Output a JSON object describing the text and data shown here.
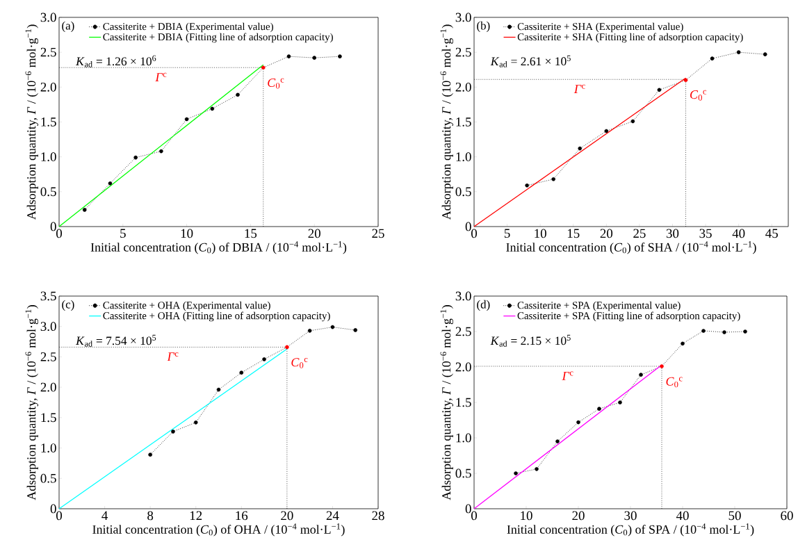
{
  "chart_data": [
    {
      "type": "line",
      "xlabel": "Initial concentration (*C*$_{0}$) of DBIA / (10$^{−4}$ mol·L$^{−1}$)",
      "ylabel": "Adsorption quantity, *Γ* / (10$^{−6}$ mol·g$^{−1}$)",
      "annotations": [
        "(a)",
        "*K*$_{ad}$ = 1.26 × 10$^{6}$"
      ],
      "xlim": [
        0,
        25
      ],
      "xticks": [
        0,
        5,
        10,
        15,
        20,
        25
      ],
      "ylim": [
        0,
        3
      ],
      "yticks": [
        0,
        0.5,
        {
          "value": 1,
          "label": "1.0"
        },
        1.5,
        {
          "value": 2,
          "label": "2.0"
        },
        2.5,
        {
          "value": 3,
          "label": "3.0"
        }
      ],
      "legend": "top left",
      "grid": false,
      "series": [
        {
          "name": "Cassiterite + DBIA (Experimental value)",
          "marker": "circle",
          "line_style": "dotted",
          "color": "#000000",
          "colors": [
            "#000000",
            "#000000",
            "#000000",
            "#000000",
            "#000000",
            "#000000",
            "#000000",
            "#ff0000",
            "#000000",
            "#000000",
            "#000000"
          ],
          "x": [
            2,
            4,
            6,
            8,
            10,
            12,
            14,
            16,
            18,
            20,
            22
          ],
          "values": [
            0.24,
            0.62,
            0.99,
            1.08,
            1.54,
            1.69,
            1.89,
            2.28,
            2.44,
            2.42,
            2.44
          ]
        },
        {
          "name": "Cassiterite + DBIA (Fitting line of adsorption capacity)",
          "marker": "none",
          "line_style": "solid",
          "color": "#00ff00",
          "x": [
            0,
            16
          ],
          "values": [
            0,
            2.32
          ]
        }
      ],
      "ref_lines": [
        {
          "axis": "y",
          "value": 2.28,
          "label": "*Γ*$^{c}$",
          "line_style": "dotted"
        },
        {
          "axis": "x",
          "value": 16,
          "label": "*C*$_{0}$$^{c}$",
          "line_style": "dotted"
        }
      ]
    },
    {
      "type": "line",
      "xlabel": "Initial concentration (*C*$_{0}$) of SHA / (10$^{−4}$ mol·L$^{−1}$)",
      "ylabel": "Adsorption quantity, *Γ* / (10$^{−6}$ mol·g$^{−1}$)",
      "annotations": [
        "(b)",
        "*K*$_{ad}$ = 2.61 × 10$^{5}$"
      ],
      "xlim": [
        0,
        47.5
      ],
      "xticks": [
        0,
        5,
        10,
        15,
        20,
        25,
        30,
        35,
        40,
        45
      ],
      "ylim": [
        0,
        3
      ],
      "yticks": [
        0,
        0.5,
        {
          "value": 1,
          "label": "1.0"
        },
        1.5,
        {
          "value": 2,
          "label": "2.0"
        },
        2.5,
        {
          "value": 3,
          "label": "3.0"
        }
      ],
      "legend": "top left",
      "grid": false,
      "series": [
        {
          "name": "Cassiterite + SHA (Experimental value)",
          "marker": "circle",
          "line_style": "dotted",
          "color": "#000000",
          "colors": [
            "#000000",
            "#000000",
            "#000000",
            "#000000",
            "#000000",
            "#000000",
            "#ff0000",
            "#000000",
            "#000000",
            "#000000"
          ],
          "x": [
            8,
            12,
            16,
            20,
            24,
            28,
            32,
            36,
            40,
            44
          ],
          "values": [
            0.59,
            0.68,
            1.12,
            1.37,
            1.51,
            1.96,
            2.1,
            2.41,
            2.5,
            2.47
          ]
        },
        {
          "name": "Cassiterite + SHA (Fitting line of adsorption capacity)",
          "marker": "none",
          "line_style": "solid",
          "color": "#ff0000",
          "x": [
            0,
            32
          ],
          "values": [
            0,
            2.13
          ]
        }
      ],
      "ref_lines": [
        {
          "axis": "y",
          "value": 2.11,
          "label": "*Γ*$^{c}$",
          "line_style": "dotted"
        },
        {
          "axis": "x",
          "value": 32,
          "label": "*C*$_{0}$$^{c}$",
          "line_style": "dotted"
        }
      ]
    },
    {
      "type": "line",
      "xlabel": "Initial concentration (*C*$_{0}$) of OHA / (10$^{−4}$ mol·L$^{−1}$)",
      "ylabel": "Adsorption quantity, *Γ* / (10$^{−6}$ mol·g$^{−1}$)",
      "annotations": [
        "(c)",
        "*K*$_{ad}$ = 7.54 × 10$^{5}$"
      ],
      "xlim": [
        0,
        28
      ],
      "xticks": [
        0,
        4,
        8,
        12,
        16,
        20,
        24,
        28
      ],
      "ylim": [
        0,
        3.5
      ],
      "yticks": [
        0,
        0.5,
        {
          "value": 1,
          "label": "1.0"
        },
        1.5,
        {
          "value": 2,
          "label": "2.0"
        },
        2.5,
        {
          "value": 3,
          "label": "3.0"
        },
        3.5
      ],
      "legend": "top left",
      "grid": false,
      "series": [
        {
          "name": "Cassiterite + OHA (Experimental value)",
          "marker": "circle",
          "line_style": "dotted",
          "color": "#000000",
          "colors": [
            "#000000",
            "#000000",
            "#000000",
            "#000000",
            "#000000",
            "#000000",
            "#ff0000",
            "#000000",
            "#000000",
            "#000000"
          ],
          "x": [
            8,
            10,
            12,
            14,
            16,
            18,
            20,
            22,
            24,
            26
          ],
          "values": [
            0.89,
            1.27,
            1.42,
            1.96,
            2.24,
            2.46,
            2.66,
            2.93,
            2.99,
            2.94
          ]
        },
        {
          "name": "Cassiterite + OHA (Fitting line of adsorption capacity)",
          "marker": "none",
          "line_style": "solid",
          "color": "#00ffff",
          "x": [
            0,
            20
          ],
          "values": [
            0,
            2.63
          ]
        }
      ],
      "ref_lines": [
        {
          "axis": "y",
          "value": 2.66,
          "label": "*Γ*$^{c}$",
          "line_style": "dotted"
        },
        {
          "axis": "x",
          "value": 20,
          "label": "*C*$_{0}$$^{c}$",
          "line_style": "dotted"
        }
      ]
    },
    {
      "type": "line",
      "xlabel": "Initial concentration (*C*$_{0}$) of SPA / (10$^{−4}$ mol·L$^{−1}$)",
      "ylabel": "Adsorption quantity, *Γ* / (10$^{−6}$ mol·g$^{−1}$)",
      "annotations": [
        "(d)",
        "*K*$_{ad}$ = 2.15 × 10$^{5}$"
      ],
      "xlim": [
        0,
        60
      ],
      "xticks": [
        0,
        10,
        20,
        30,
        40,
        50,
        60
      ],
      "ylim": [
        0,
        3
      ],
      "yticks": [
        0,
        0.5,
        {
          "value": 1,
          "label": "1.0"
        },
        1.5,
        {
          "value": 2,
          "label": "2.0"
        },
        2.5,
        {
          "value": 3,
          "label": "3.0"
        }
      ],
      "legend": "top left",
      "grid": false,
      "series": [
        {
          "name": "Cassiterite + SPA (Experimental value)",
          "marker": "circle",
          "line_style": "dotted",
          "color": "#000000",
          "colors": [
            "#000000",
            "#000000",
            "#000000",
            "#000000",
            "#000000",
            "#000000",
            "#000000",
            "#ff0000",
            "#000000",
            "#000000",
            "#000000",
            "#000000"
          ],
          "x": [
            8,
            12,
            16,
            20,
            24,
            28,
            32,
            36,
            40,
            44,
            48,
            52
          ],
          "values": [
            0.5,
            0.56,
            0.95,
            1.22,
            1.41,
            1.5,
            1.89,
            2.01,
            2.33,
            2.51,
            2.49,
            2.5
          ]
        },
        {
          "name": "Cassiterite + SPA (Fitting line of adsorption capacity)",
          "marker": "none",
          "line_style": "solid",
          "color": "#ff00ff",
          "x": [
            0,
            36
          ],
          "values": [
            0,
            2.03
          ]
        }
      ],
      "ref_lines": [
        {
          "axis": "y",
          "value": 2.01,
          "label": "*Γ*$^{c}$",
          "line_style": "dotted"
        },
        {
          "axis": "x",
          "value": 36,
          "label": "*C*$_{0}$$^{c}$",
          "line_style": "dotted"
        }
      ]
    }
  ]
}
